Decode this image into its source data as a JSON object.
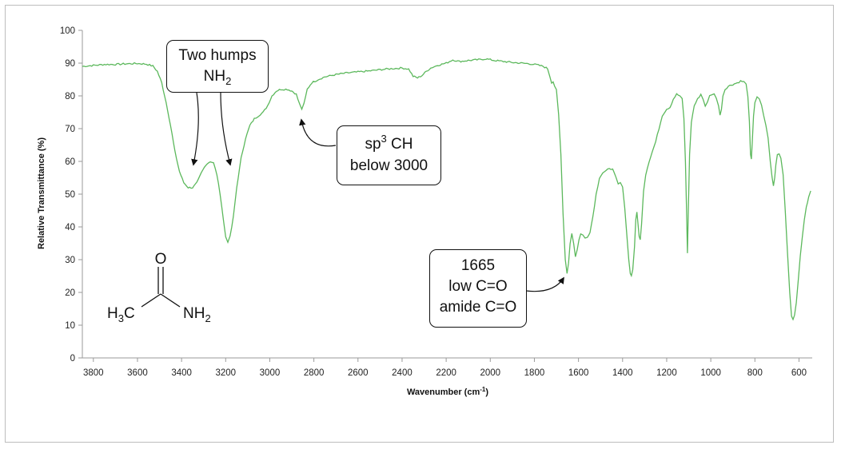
{
  "chart_data": {
    "type": "line",
    "title": "",
    "xlabel_main": "Wavenumber (cm",
    "xlabel_sup": "-1",
    "xlabel_end": ")",
    "ylabel": "Relative Transmittance (%)",
    "xlim": [
      3850,
      540
    ],
    "ylim": [
      0,
      100
    ],
    "x_ticks": [
      3800,
      3600,
      3400,
      3200,
      3000,
      2800,
      2600,
      2400,
      2200,
      2000,
      1800,
      1600,
      1400,
      1200,
      1000,
      800,
      600
    ],
    "y_ticks": [
      0,
      10,
      20,
      30,
      40,
      50,
      60,
      70,
      80,
      90,
      100
    ],
    "line_color": "#5cb85c",
    "series": [
      {
        "points": [
          [
            3850,
            89.0
          ],
          [
            3800,
            89.3
          ],
          [
            3750,
            89.6
          ],
          [
            3700,
            89.6
          ],
          [
            3650,
            89.8
          ],
          [
            3600,
            89.9
          ],
          [
            3560,
            89.7
          ],
          [
            3530,
            89.1
          ],
          [
            3510,
            87.5
          ],
          [
            3490,
            84.0
          ],
          [
            3470,
            78.0
          ],
          [
            3450,
            71.0
          ],
          [
            3430,
            63.0
          ],
          [
            3410,
            57.0
          ],
          [
            3390,
            53.5
          ],
          [
            3370,
            52.0
          ],
          [
            3350,
            52.0
          ],
          [
            3330,
            53.5
          ],
          [
            3310,
            56.5
          ],
          [
            3290,
            59.0
          ],
          [
            3270,
            60.0
          ],
          [
            3255,
            59.5
          ],
          [
            3240,
            56.0
          ],
          [
            3225,
            50.0
          ],
          [
            3210,
            42.0
          ],
          [
            3200,
            37.0
          ],
          [
            3190,
            35.5
          ],
          [
            3180,
            37.0
          ],
          [
            3165,
            43.0
          ],
          [
            3150,
            52.0
          ],
          [
            3130,
            61.0
          ],
          [
            3110,
            67.0
          ],
          [
            3090,
            71.0
          ],
          [
            3070,
            73.0
          ],
          [
            3050,
            74.0
          ],
          [
            3030,
            75.0
          ],
          [
            3010,
            77.0
          ],
          [
            2990,
            80.0
          ],
          [
            2970,
            81.5
          ],
          [
            2950,
            82.0
          ],
          [
            2920,
            82.0
          ],
          [
            2900,
            81.5
          ],
          [
            2880,
            80.5
          ],
          [
            2865,
            77.5
          ],
          [
            2855,
            76.0
          ],
          [
            2845,
            77.5
          ],
          [
            2830,
            82.0
          ],
          [
            2810,
            84.0
          ],
          [
            2780,
            85.0
          ],
          [
            2750,
            85.8
          ],
          [
            2700,
            86.5
          ],
          [
            2650,
            87.0
          ],
          [
            2600,
            87.3
          ],
          [
            2550,
            87.6
          ],
          [
            2500,
            88.0
          ],
          [
            2450,
            88.3
          ],
          [
            2400,
            88.5
          ],
          [
            2370,
            88.2
          ],
          [
            2350,
            86.0
          ],
          [
            2330,
            85.5
          ],
          [
            2310,
            86.2
          ],
          [
            2290,
            87.5
          ],
          [
            2270,
            88.5
          ],
          [
            2240,
            89.3
          ],
          [
            2200,
            90.0
          ],
          [
            2170,
            91.0
          ],
          [
            2140,
            90.5
          ],
          [
            2100,
            90.8
          ],
          [
            2060,
            91.0
          ],
          [
            2020,
            91.3
          ],
          [
            1980,
            90.8
          ],
          [
            1940,
            90.5
          ],
          [
            1900,
            90.2
          ],
          [
            1860,
            90.0
          ],
          [
            1820,
            89.8
          ],
          [
            1790,
            89.5
          ],
          [
            1760,
            89.0
          ],
          [
            1740,
            88.3
          ],
          [
            1730,
            86.0
          ],
          [
            1722,
            84.0
          ],
          [
            1715,
            84.5
          ],
          [
            1708,
            83.0
          ],
          [
            1700,
            82.0
          ],
          [
            1690,
            74.0
          ],
          [
            1680,
            62.0
          ],
          [
            1670,
            44.0
          ],
          [
            1660,
            30.0
          ],
          [
            1652,
            26.0
          ],
          [
            1645,
            29.0
          ],
          [
            1638,
            35.0
          ],
          [
            1630,
            38.0
          ],
          [
            1622,
            35.0
          ],
          [
            1614,
            31.0
          ],
          [
            1606,
            33.0
          ],
          [
            1598,
            36.0
          ],
          [
            1590,
            38.0
          ],
          [
            1580,
            37.5
          ],
          [
            1570,
            36.5
          ],
          [
            1560,
            36.8
          ],
          [
            1548,
            38.5
          ],
          [
            1535,
            43.0
          ],
          [
            1520,
            50.0
          ],
          [
            1505,
            55.0
          ],
          [
            1490,
            56.5
          ],
          [
            1475,
            57.0
          ],
          [
            1460,
            58.0
          ],
          [
            1445,
            57.5
          ],
          [
            1430,
            55.0
          ],
          [
            1420,
            53.0
          ],
          [
            1410,
            53.5
          ],
          [
            1400,
            52.0
          ],
          [
            1390,
            46.0
          ],
          [
            1380,
            37.0
          ],
          [
            1372,
            30.0
          ],
          [
            1365,
            26.0
          ],
          [
            1360,
            25.0
          ],
          [
            1354,
            27.0
          ],
          [
            1346,
            34.0
          ],
          [
            1340,
            42.0
          ],
          [
            1335,
            44.5
          ],
          [
            1330,
            41.0
          ],
          [
            1325,
            37.0
          ],
          [
            1320,
            36.0
          ],
          [
            1314,
            41.0
          ],
          [
            1305,
            51.0
          ],
          [
            1295,
            56.0
          ],
          [
            1280,
            60.0
          ],
          [
            1265,
            63.0
          ],
          [
            1250,
            66.0
          ],
          [
            1235,
            70.0
          ],
          [
            1220,
            74.0
          ],
          [
            1200,
            76.0
          ],
          [
            1185,
            76.5
          ],
          [
            1170,
            79.0
          ],
          [
            1155,
            80.5
          ],
          [
            1140,
            80.0
          ],
          [
            1130,
            79.0
          ],
          [
            1122,
            73.0
          ],
          [
            1115,
            60.0
          ],
          [
            1110,
            45.0
          ],
          [
            1106,
            32.0
          ],
          [
            1102,
            45.0
          ],
          [
            1096,
            62.0
          ],
          [
            1088,
            72.0
          ],
          [
            1075,
            77.0
          ],
          [
            1060,
            79.0
          ],
          [
            1045,
            80.5
          ],
          [
            1035,
            79.0
          ],
          [
            1025,
            77.0
          ],
          [
            1015,
            78.0
          ],
          [
            1005,
            80.0
          ],
          [
            995,
            80.5
          ],
          [
            985,
            80.5
          ],
          [
            975,
            79.5
          ],
          [
            965,
            77.0
          ],
          [
            958,
            74.0
          ],
          [
            952,
            76.0
          ],
          [
            945,
            80.0
          ],
          [
            935,
            82.0
          ],
          [
            920,
            83.0
          ],
          [
            900,
            83.5
          ],
          [
            880,
            84.0
          ],
          [
            865,
            84.5
          ],
          [
            850,
            84.3
          ],
          [
            840,
            83.5
          ],
          [
            832,
            80.0
          ],
          [
            825,
            72.0
          ],
          [
            820,
            62.0
          ],
          [
            816,
            60.5
          ],
          [
            812,
            66.0
          ],
          [
            806,
            74.0
          ],
          [
            800,
            78.0
          ],
          [
            790,
            79.5
          ],
          [
            780,
            79.0
          ],
          [
            770,
            77.0
          ],
          [
            760,
            74.0
          ],
          [
            750,
            71.0
          ],
          [
            740,
            67.0
          ],
          [
            730,
            60.0
          ],
          [
            722,
            55.0
          ],
          [
            716,
            52.5
          ],
          [
            710,
            55.0
          ],
          [
            705,
            59.0
          ],
          [
            698,
            62.0
          ],
          [
            690,
            62.5
          ],
          [
            682,
            61.0
          ],
          [
            672,
            56.0
          ],
          [
            662,
            45.0
          ],
          [
            652,
            32.0
          ],
          [
            642,
            20.0
          ],
          [
            634,
            13.0
          ],
          [
            627,
            11.5
          ],
          [
            620,
            13.0
          ],
          [
            612,
            17.0
          ],
          [
            603,
            24.0
          ],
          [
            594,
            31.0
          ],
          [
            585,
            37.0
          ],
          [
            576,
            42.0
          ],
          [
            567,
            46.0
          ],
          [
            556,
            49.0
          ],
          [
            547,
            51.0
          ]
        ]
      }
    ],
    "callouts": {
      "nh2": {
        "line1": "Two humps",
        "line2_main": "NH",
        "line2_sub": "2"
      },
      "ch": {
        "line1_main": "sp",
        "line1_sup": "3",
        "line1_end": " CH",
        "line2": "below 3000"
      },
      "co": {
        "line1": "1665",
        "line2": "low C=O",
        "line3": "amide C=O"
      }
    },
    "molecule": {
      "o_label": "O",
      "ch3_main": "H",
      "ch3_sub": "3",
      "ch3_end": "C",
      "nh2_main": "NH",
      "nh2_sub": "2"
    }
  }
}
